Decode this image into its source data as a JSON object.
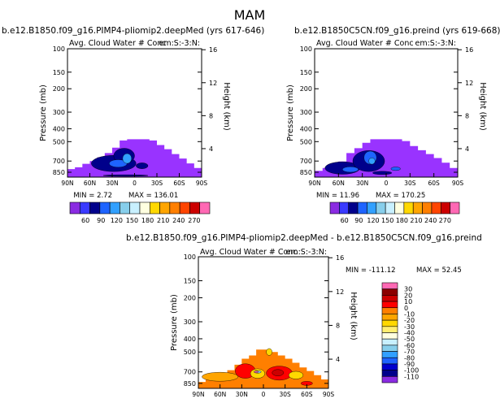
{
  "figure_title": "MAM",
  "chart_data": [
    {
      "type": "heatmap",
      "title": "b.e12.B1850.f09_g16.PIMP4-pliomip2.deepMed (yrs 617-646)",
      "subtitle_left": "Avg. Cloud Water # Conc",
      "subtitle_right": "em:S:-3:N:",
      "xlabel": "",
      "ylabel": "Pressure (mb)",
      "ylabel_right": "Height (km)",
      "x_ticks": [
        "90N",
        "60N",
        "30N",
        "0",
        "30S",
        "60S",
        "90S"
      ],
      "y_ticks": [
        100,
        150,
        200,
        300,
        400,
        500,
        700,
        850
      ],
      "y_range": [
        100,
        925
      ],
      "y_right_ticks": [
        4,
        8,
        12,
        16
      ],
      "stats": {
        "min_label": "MIN =",
        "min": "2.72",
        "max_label": "MAX =",
        "max": "136.01"
      },
      "levels": [
        60,
        90,
        120,
        150,
        180,
        210,
        240,
        270
      ],
      "colors": [
        "#8a2be2",
        "#3a3aff",
        "#00008b",
        "#1e64ff",
        "#32a0ff",
        "#87ceeb",
        "#c8f0ff",
        "#ffffe0",
        "#ffd800",
        "#ffa500",
        "#ff7f00",
        "#ff4500",
        "#cc0000",
        "#ff69b4"
      ],
      "fields": {
        "base": {
          "color": "#9933ff",
          "profile": [
            [
              -90,
              805
            ],
            [
              -80,
              780
            ],
            [
              -70,
              735
            ],
            [
              -60,
              700
            ],
            [
              -50,
              655
            ],
            [
              -40,
              610
            ],
            [
              -30,
              555
            ],
            [
              -20,
              490
            ],
            [
              -10,
              480
            ],
            [
              0,
              480
            ],
            [
              10,
              480
            ],
            [
              20,
              490
            ],
            [
              30,
              530
            ],
            [
              40,
              570
            ],
            [
              50,
              620
            ],
            [
              60,
              670
            ],
            [
              70,
              730
            ],
            [
              80,
              790
            ],
            [
              90,
              830
            ]
          ]
        },
        "blobs": [
          {
            "color": "#00008b",
            "lat": -28,
            "p": 730,
            "rx": 30,
            "rp": 110
          },
          {
            "color": "#00008b",
            "lat": -14,
            "p": 640,
            "rx": 14,
            "rp": 90
          },
          {
            "color": "#00008b",
            "lat": 10,
            "p": 760,
            "rx": 8,
            "rp": 40
          },
          {
            "color": "#1e64ff",
            "lat": -22,
            "p": 730,
            "rx": 12,
            "rp": 50
          },
          {
            "color": "#32a0ff",
            "lat": -10,
            "p": 670,
            "rx": 6,
            "rp": 60
          },
          {
            "color": "#00008b",
            "lat": -12,
            "p": 900,
            "rx": 30,
            "rp": 12
          }
        ]
      }
    },
    {
      "type": "heatmap",
      "title": "b.e12.B1850C5CN.f09_g16.preind (yrs 619-668)",
      "subtitle_left": "Avg. Cloud Water # Conc",
      "subtitle_right": "em:S:-3:N:",
      "xlabel": "",
      "ylabel": "Pressure (mb)",
      "ylabel_right": "Height (km)",
      "x_ticks": [
        "90N",
        "60N",
        "30N",
        "0",
        "30S",
        "60S",
        "90S"
      ],
      "y_ticks": [
        100,
        150,
        200,
        300,
        400,
        500,
        700,
        850
      ],
      "y_range": [
        100,
        925
      ],
      "y_right_ticks": [
        4,
        8,
        12,
        16
      ],
      "stats": {
        "min_label": "MIN =",
        "min": "11.96",
        "max_label": "MAX =",
        "max": "170.25"
      },
      "levels": [
        60,
        90,
        120,
        150,
        180,
        210,
        240,
        270
      ],
      "colors": [
        "#8a2be2",
        "#3a3aff",
        "#00008b",
        "#1e64ff",
        "#32a0ff",
        "#87ceeb",
        "#c8f0ff",
        "#ffffe0",
        "#ffd800",
        "#ffa500",
        "#ff7f00",
        "#ff4500",
        "#cc0000",
        "#ff69b4"
      ],
      "fields": {
        "base": {
          "color": "#9933ff",
          "profile": [
            [
              -90,
              830
            ],
            [
              -80,
              790
            ],
            [
              -70,
              760
            ],
            [
              -60,
              705
            ],
            [
              -50,
              610
            ],
            [
              -40,
              560
            ],
            [
              -30,
              510
            ],
            [
              -20,
              480
            ],
            [
              -10,
              480
            ],
            [
              0,
              480
            ],
            [
              10,
              480
            ],
            [
              20,
              495
            ],
            [
              30,
              540
            ],
            [
              40,
              580
            ],
            [
              50,
              620
            ],
            [
              60,
              665
            ],
            [
              70,
              720
            ],
            [
              80,
              790
            ],
            [
              90,
              830
            ]
          ]
        },
        "blobs": [
          {
            "color": "#00008b",
            "lat": -55,
            "p": 790,
            "rx": 22,
            "rp": 90
          },
          {
            "color": "#00008b",
            "lat": -22,
            "p": 700,
            "rx": 20,
            "rp": 140
          },
          {
            "color": "#1e64ff",
            "lat": -45,
            "p": 810,
            "rx": 10,
            "rp": 40
          },
          {
            "color": "#1e64ff",
            "lat": -20,
            "p": 660,
            "rx": 8,
            "rp": 80
          },
          {
            "color": "#32a0ff",
            "lat": -18,
            "p": 700,
            "rx": 4,
            "rp": 40
          },
          {
            "color": "#00008b",
            "lat": -5,
            "p": 860,
            "rx": 12,
            "rp": 25
          },
          {
            "color": "#1e64ff",
            "lat": 12,
            "p": 800,
            "rx": 6,
            "rp": 25
          }
        ]
      }
    },
    {
      "type": "heatmap",
      "title": "b.e12.B1850.f09_g16.PIMP4-pliomip2.deepMed - b.e12.B1850C5CN.f09_g16.preind",
      "subtitle_left": "Avg. Cloud Water # Conc",
      "subtitle_right": "em:S:-3:N:",
      "xlabel": "",
      "ylabel": "Pressure (mb)",
      "ylabel_right": "Height (km)",
      "x_ticks": [
        "90N",
        "60N",
        "30N",
        "0",
        "30S",
        "60S",
        "90S"
      ],
      "y_ticks": [
        100,
        150,
        200,
        300,
        400,
        500,
        700,
        850
      ],
      "y_range": [
        100,
        925
      ],
      "y_right_ticks": [
        4,
        8,
        12,
        16
      ],
      "stats": {
        "min_label": "MIN =",
        "min": "-111.12",
        "max_label": "MAX =",
        "max": "52.45"
      },
      "levels": [
        30,
        20,
        10,
        0,
        -10,
        -20,
        -30,
        -40,
        -50,
        -60,
        -70,
        -80,
        -90,
        -100,
        -110
      ],
      "colors": [
        "#ff69b4",
        "#8b0000",
        "#cc0000",
        "#ff0000",
        "#ff7f00",
        "#ffa500",
        "#ffd800",
        "#ffee70",
        "#ffffe0",
        "#c8f0ff",
        "#87ceeb",
        "#32a0ff",
        "#1e64ff",
        "#0000cd",
        "#00008b",
        "#8a2be2"
      ],
      "fields": {
        "base": {
          "color": "#ff7f00",
          "profile": [
            [
              -90,
              830
            ],
            [
              -80,
              780
            ],
            [
              -70,
              760
            ],
            [
              -60,
              715
            ],
            [
              -50,
              680
            ],
            [
              -40,
              620
            ],
            [
              -30,
              560
            ],
            [
              -20,
              530
            ],
            [
              -10,
              480
            ],
            [
              0,
              480
            ],
            [
              10,
              500
            ],
            [
              20,
              530
            ],
            [
              30,
              560
            ],
            [
              40,
              600
            ],
            [
              50,
              650
            ],
            [
              60,
              690
            ],
            [
              70,
              740
            ],
            [
              80,
              795
            ],
            [
              90,
              840
            ]
          ]
        },
        "blobs": [
          {
            "color": "#ffa500",
            "lat": -60,
            "p": 760,
            "rx": 25,
            "rp": 60
          },
          {
            "color": "#ff0000",
            "lat": -25,
            "p": 690,
            "rx": 14,
            "rp": 90
          },
          {
            "color": "#ff0000",
            "lat": 22,
            "p": 715,
            "rx": 18,
            "rp": 90
          },
          {
            "color": "#cc0000",
            "lat": 20,
            "p": 710,
            "rx": 8,
            "rp": 40
          },
          {
            "color": "#ffd800",
            "lat": -8,
            "p": 720,
            "rx": 10,
            "rp": 60
          },
          {
            "color": "#87ceeb",
            "lat": -8,
            "p": 700,
            "rx": 5,
            "rp": 15
          },
          {
            "color": "#ff69b4",
            "lat": -10,
            "p": 700,
            "rx": 3,
            "rp": 10
          },
          {
            "color": "#ffd800",
            "lat": 45,
            "p": 740,
            "rx": 10,
            "rp": 50
          },
          {
            "color": "#ff0000",
            "lat": 60,
            "p": 850,
            "rx": 8,
            "rp": 30
          },
          {
            "color": "#ffd800",
            "lat": 8,
            "p": 500,
            "rx": 4,
            "rp": 30
          }
        ]
      }
    }
  ]
}
